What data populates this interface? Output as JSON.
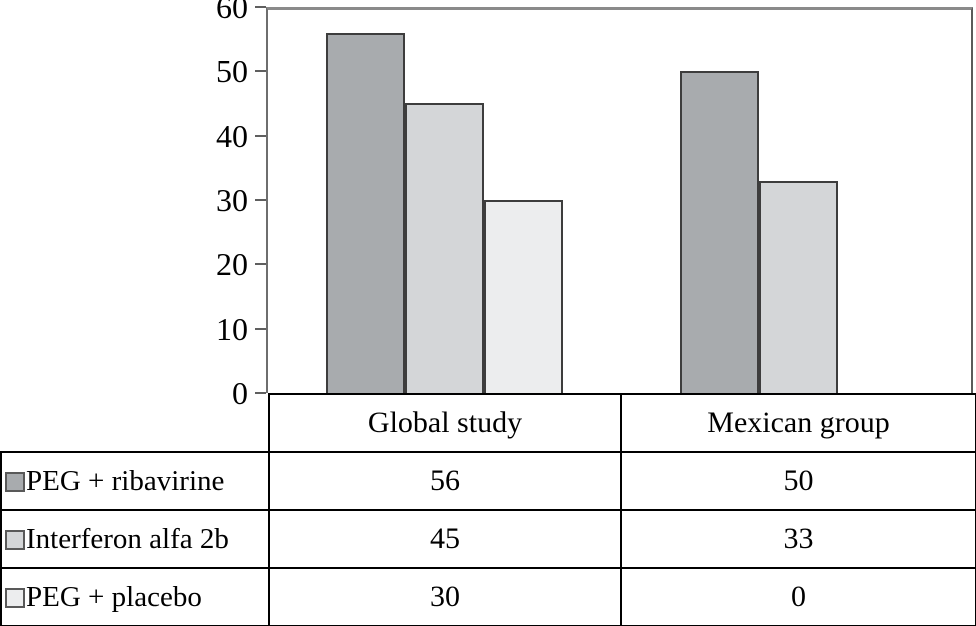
{
  "chart_data": {
    "type": "bar",
    "title": "",
    "xlabel": "",
    "ylabel": "",
    "categories": [
      "Global study",
      "Mexican group"
    ],
    "series": [
      {
        "name": "PEG + ribavirine",
        "values": [
          56,
          50
        ],
        "color": "#a8abae",
        "border_color": "#3d3d3d"
      },
      {
        "name": "Interferon alfa 2b",
        "values": [
          45,
          33
        ],
        "color": "#d4d6d8",
        "border_color": "#3d3d3d"
      },
      {
        "name": "PEG + placebo",
        "values": [
          30,
          0
        ],
        "color": "#ecedee",
        "border_color": "#3d3d3d"
      }
    ],
    "ylim": [
      0,
      60
    ],
    "yticks": [
      "0",
      "10",
      "20",
      "30",
      "40",
      "50",
      "60"
    ],
    "grid": false,
    "legend_position": "left-of-table-rows"
  },
  "table": {
    "column_headers": [
      "Global study",
      "Mexican group"
    ],
    "rows": [
      {
        "label": "PEG + ribavirine",
        "values": [
          "56",
          "50"
        ]
      },
      {
        "label": "Interferon alfa 2b",
        "values": [
          "45",
          "33"
        ]
      },
      {
        "label": "PEG + placebo",
        "values": [
          "30",
          "0"
        ]
      }
    ]
  },
  "colors": {
    "background": "#ffffff",
    "axis_line": "#6e6e6e",
    "table_border": "#000000",
    "text": "#000000"
  }
}
